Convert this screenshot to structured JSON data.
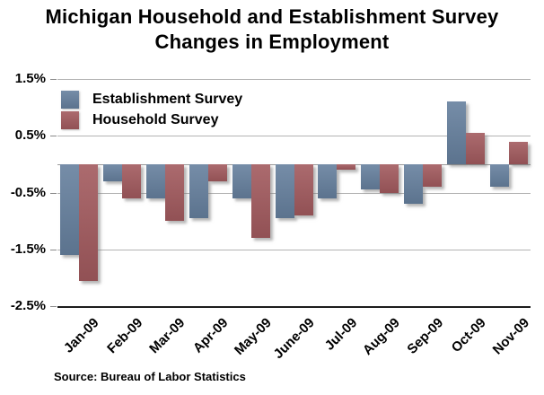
{
  "title": {
    "line1": "Michigan Household and Establishment Survey",
    "line2": "Changes in Employment"
  },
  "source": "Source: Bureau of Labor Statistics",
  "colors": {
    "establishment": "#66809e",
    "household": "#a25a5e",
    "gridline": "#b3b3b3",
    "zero_line": "#9a9a9a",
    "axis": "#1c1c1c",
    "background": "#ffffff",
    "text": "#000000"
  },
  "chart_data": {
    "type": "bar",
    "title": "Michigan Household and Establishment Survey Changes in Employment",
    "categories": [
      "Jan-09",
      "Feb-09",
      "Mar-09",
      "Apr-09",
      "May-09",
      "June-09",
      "Jul-09",
      "Aug-09",
      "Sep-09",
      "Oct-09",
      "Nov-09"
    ],
    "series": [
      {
        "name": "Establishment Survey",
        "color": "#66809e",
        "values": [
          -1.6,
          -0.3,
          -0.6,
          -0.95,
          -0.6,
          -0.95,
          -0.6,
          -0.45,
          -0.7,
          1.1,
          -0.4
        ]
      },
      {
        "name": "Household Survey",
        "color": "#a25a5e",
        "values": [
          -2.05,
          -0.6,
          -1.0,
          -0.3,
          -1.3,
          -0.9,
          -0.1,
          -0.5,
          -0.4,
          0.55,
          0.4
        ]
      }
    ],
    "xlabel": "",
    "ylabel": "",
    "ylim": [
      -2.5,
      1.5
    ],
    "yticks": [
      1.5,
      0.5,
      -0.5,
      -1.5,
      -2.5
    ],
    "ytick_labels": [
      "1.5%",
      "0.5%",
      "-0.5%",
      "-1.5%",
      "-2.5%"
    ],
    "grid": true,
    "zero_line": true,
    "legend_position": "top-left"
  }
}
